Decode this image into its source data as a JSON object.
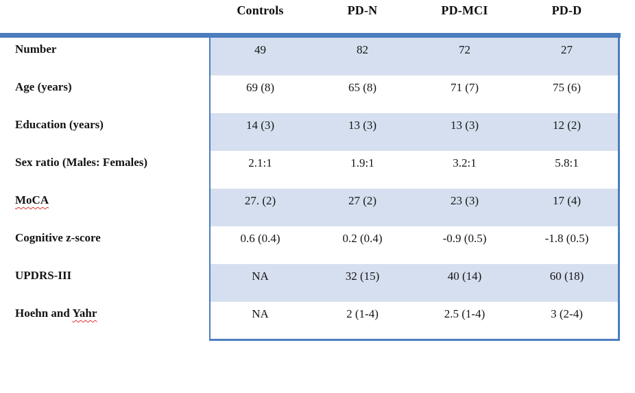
{
  "table": {
    "columns": [
      "Controls",
      "PD-N",
      "PD-MCI",
      "PD-D"
    ],
    "rows": [
      {
        "label": [
          {
            "t": "Number",
            "sq": false
          }
        ],
        "values": [
          "49",
          "82",
          "72",
          "27"
        ]
      },
      {
        "label": [
          {
            "t": "Age (years)",
            "sq": false
          }
        ],
        "values": [
          "69 (8)",
          "65 (8)",
          "71 (7)",
          "75 (6)"
        ]
      },
      {
        "label": [
          {
            "t": "Education (years)",
            "sq": false
          }
        ],
        "values": [
          "14 (3)",
          "13 (3)",
          "13 (3)",
          "12 (2)"
        ]
      },
      {
        "label": [
          {
            "t": "Sex ratio (Males: Females)",
            "sq": false
          }
        ],
        "values": [
          "2.1:1",
          "1.9:1",
          "3.2:1",
          "5.8:1"
        ]
      },
      {
        "label": [
          {
            "t": "MoCA",
            "sq": true
          }
        ],
        "values": [
          "27. (2)",
          "27 (2)",
          "23 (3)",
          "17 (4)"
        ]
      },
      {
        "label": [
          {
            "t": "Cognitive z-score",
            "sq": false
          }
        ],
        "values": [
          "0.6 (0.4)",
          "0.2 (0.4)",
          "-0.9 (0.5)",
          "-1.8 (0.5)"
        ]
      },
      {
        "label": [
          {
            "t": "UPDRS-III",
            "sq": false
          }
        ],
        "values": [
          "NA",
          "32 (15)",
          "40 (14)",
          "60 (18)"
        ]
      },
      {
        "label": [
          {
            "t": "Hoehn and ",
            "sq": false
          },
          {
            "t": "Yahr",
            "sq": true
          }
        ],
        "values": [
          "NA",
          "2 (1-4)",
          "2.5 (1-4)",
          "3 (2-4)"
        ]
      }
    ],
    "colors": {
      "border": "#4b7dbe",
      "shade": "#d5dfef"
    }
  },
  "chart_data": {
    "type": "table",
    "title": "",
    "columns": [
      "",
      "Controls",
      "PD-N",
      "PD-MCI",
      "PD-D"
    ],
    "rows": [
      [
        "Number",
        "49",
        "82",
        "72",
        "27"
      ],
      [
        "Age (years)",
        "69 (8)",
        "65 (8)",
        "71 (7)",
        "75 (6)"
      ],
      [
        "Education (years)",
        "14 (3)",
        "13 (3)",
        "13 (3)",
        "12 (2)"
      ],
      [
        "Sex ratio (Males: Females)",
        "2.1:1",
        "1.9:1",
        "3.2:1",
        "5.8:1"
      ],
      [
        "MoCA",
        "27. (2)",
        "27 (2)",
        "23 (3)",
        "17 (4)"
      ],
      [
        "Cognitive z-score",
        "0.6 (0.4)",
        "0.2 (0.4)",
        "-0.9 (0.5)",
        "-1.8 (0.5)"
      ],
      [
        "UPDRS-III",
        "NA",
        "32 (15)",
        "40 (14)",
        "60 (18)"
      ],
      [
        "Hoehn and Yahr",
        "NA",
        "2 (1-4)",
        "2.5 (1-4)",
        "3 (2-4)"
      ]
    ]
  }
}
